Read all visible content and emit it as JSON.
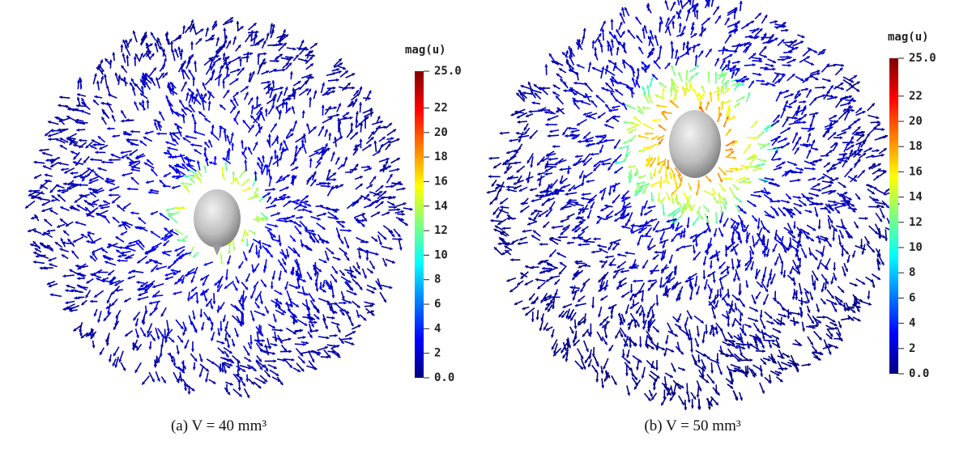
{
  "panels": [
    {
      "caption": "(a) V = 40 mm³",
      "colorbar": {
        "title": "mag(u)",
        "range": [
          0,
          25
        ],
        "ticks": [
          {
            "value": 25,
            "label": "25.0"
          },
          22,
          20,
          18,
          16,
          14,
          12,
          10,
          8,
          6,
          4,
          2,
          {
            "value": 0,
            "label": "0.0"
          }
        ]
      }
    },
    {
      "caption": "(b) V = 50 mm³",
      "colorbar": {
        "title": "mag(u)",
        "range": [
          0,
          25
        ],
        "ticks": [
          {
            "value": 25,
            "label": "25.0"
          },
          22,
          20,
          18,
          16,
          14,
          12,
          10,
          8,
          6,
          4,
          2,
          {
            "value": 0,
            "label": "0.0"
          }
        ]
      }
    }
  ]
}
